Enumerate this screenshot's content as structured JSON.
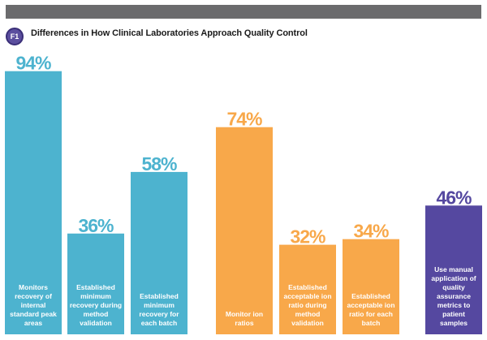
{
  "figure_badge": "F1",
  "title": "Differences in How Clinical Laboratories Approach Quality Control",
  "colors": {
    "top_bar": "#6b6b6d",
    "badge": "#5b4e9e",
    "blue": "#4db3cf",
    "orange": "#f8a84a",
    "purple": "#5548a0"
  },
  "chart_data": {
    "type": "bar",
    "title": "Differences in How Clinical Laboratories Approach Quality Control",
    "xlabel": "",
    "ylabel": "",
    "ylim": [
      0,
      100
    ],
    "grid": false,
    "categories": [
      "Monitors recovery of internal standard peak areas",
      "Established minimum recovery during method validation",
      "Established minimum recovery for each batch",
      "Monitor ion ratios",
      "Established acceptable ion ratio during method validation",
      "Established acceptable ion ratio for each batch",
      "Use manual application of quality assurance metrics to patient samples"
    ],
    "values": [
      94,
      36,
      58,
      74,
      32,
      34,
      46
    ],
    "value_labels": [
      "94%",
      "36%",
      "58%",
      "74%",
      "32%",
      "34%",
      "46%"
    ],
    "bar_colors": [
      "#4db3cf",
      "#4db3cf",
      "#4db3cf",
      "#f8a84a",
      "#f8a84a",
      "#f8a84a",
      "#5548a0"
    ],
    "label_colors": [
      "#4db3cf",
      "#4db3cf",
      "#4db3cf",
      "#f8a84a",
      "#f8a84a",
      "#f8a84a",
      "#5548a0"
    ],
    "bar_text_lines": [
      [
        "Monitors",
        "recovery of",
        "internal",
        "standard peak",
        "areas"
      ],
      [
        "Established",
        "minimum",
        "recovery during",
        "method",
        "validation"
      ],
      [
        "Established",
        "minimum",
        "recovery for",
        "each batch"
      ],
      [
        "Monitor ion",
        "ratios"
      ],
      [
        "Established",
        "acceptable ion",
        "ratio during",
        "method",
        "validation"
      ],
      [
        "Established",
        "acceptable ion",
        "ratio for each",
        "batch"
      ],
      [
        "Use manual",
        "application of",
        "quality",
        "assurance",
        "metrics to",
        "patient",
        "samples"
      ]
    ]
  }
}
